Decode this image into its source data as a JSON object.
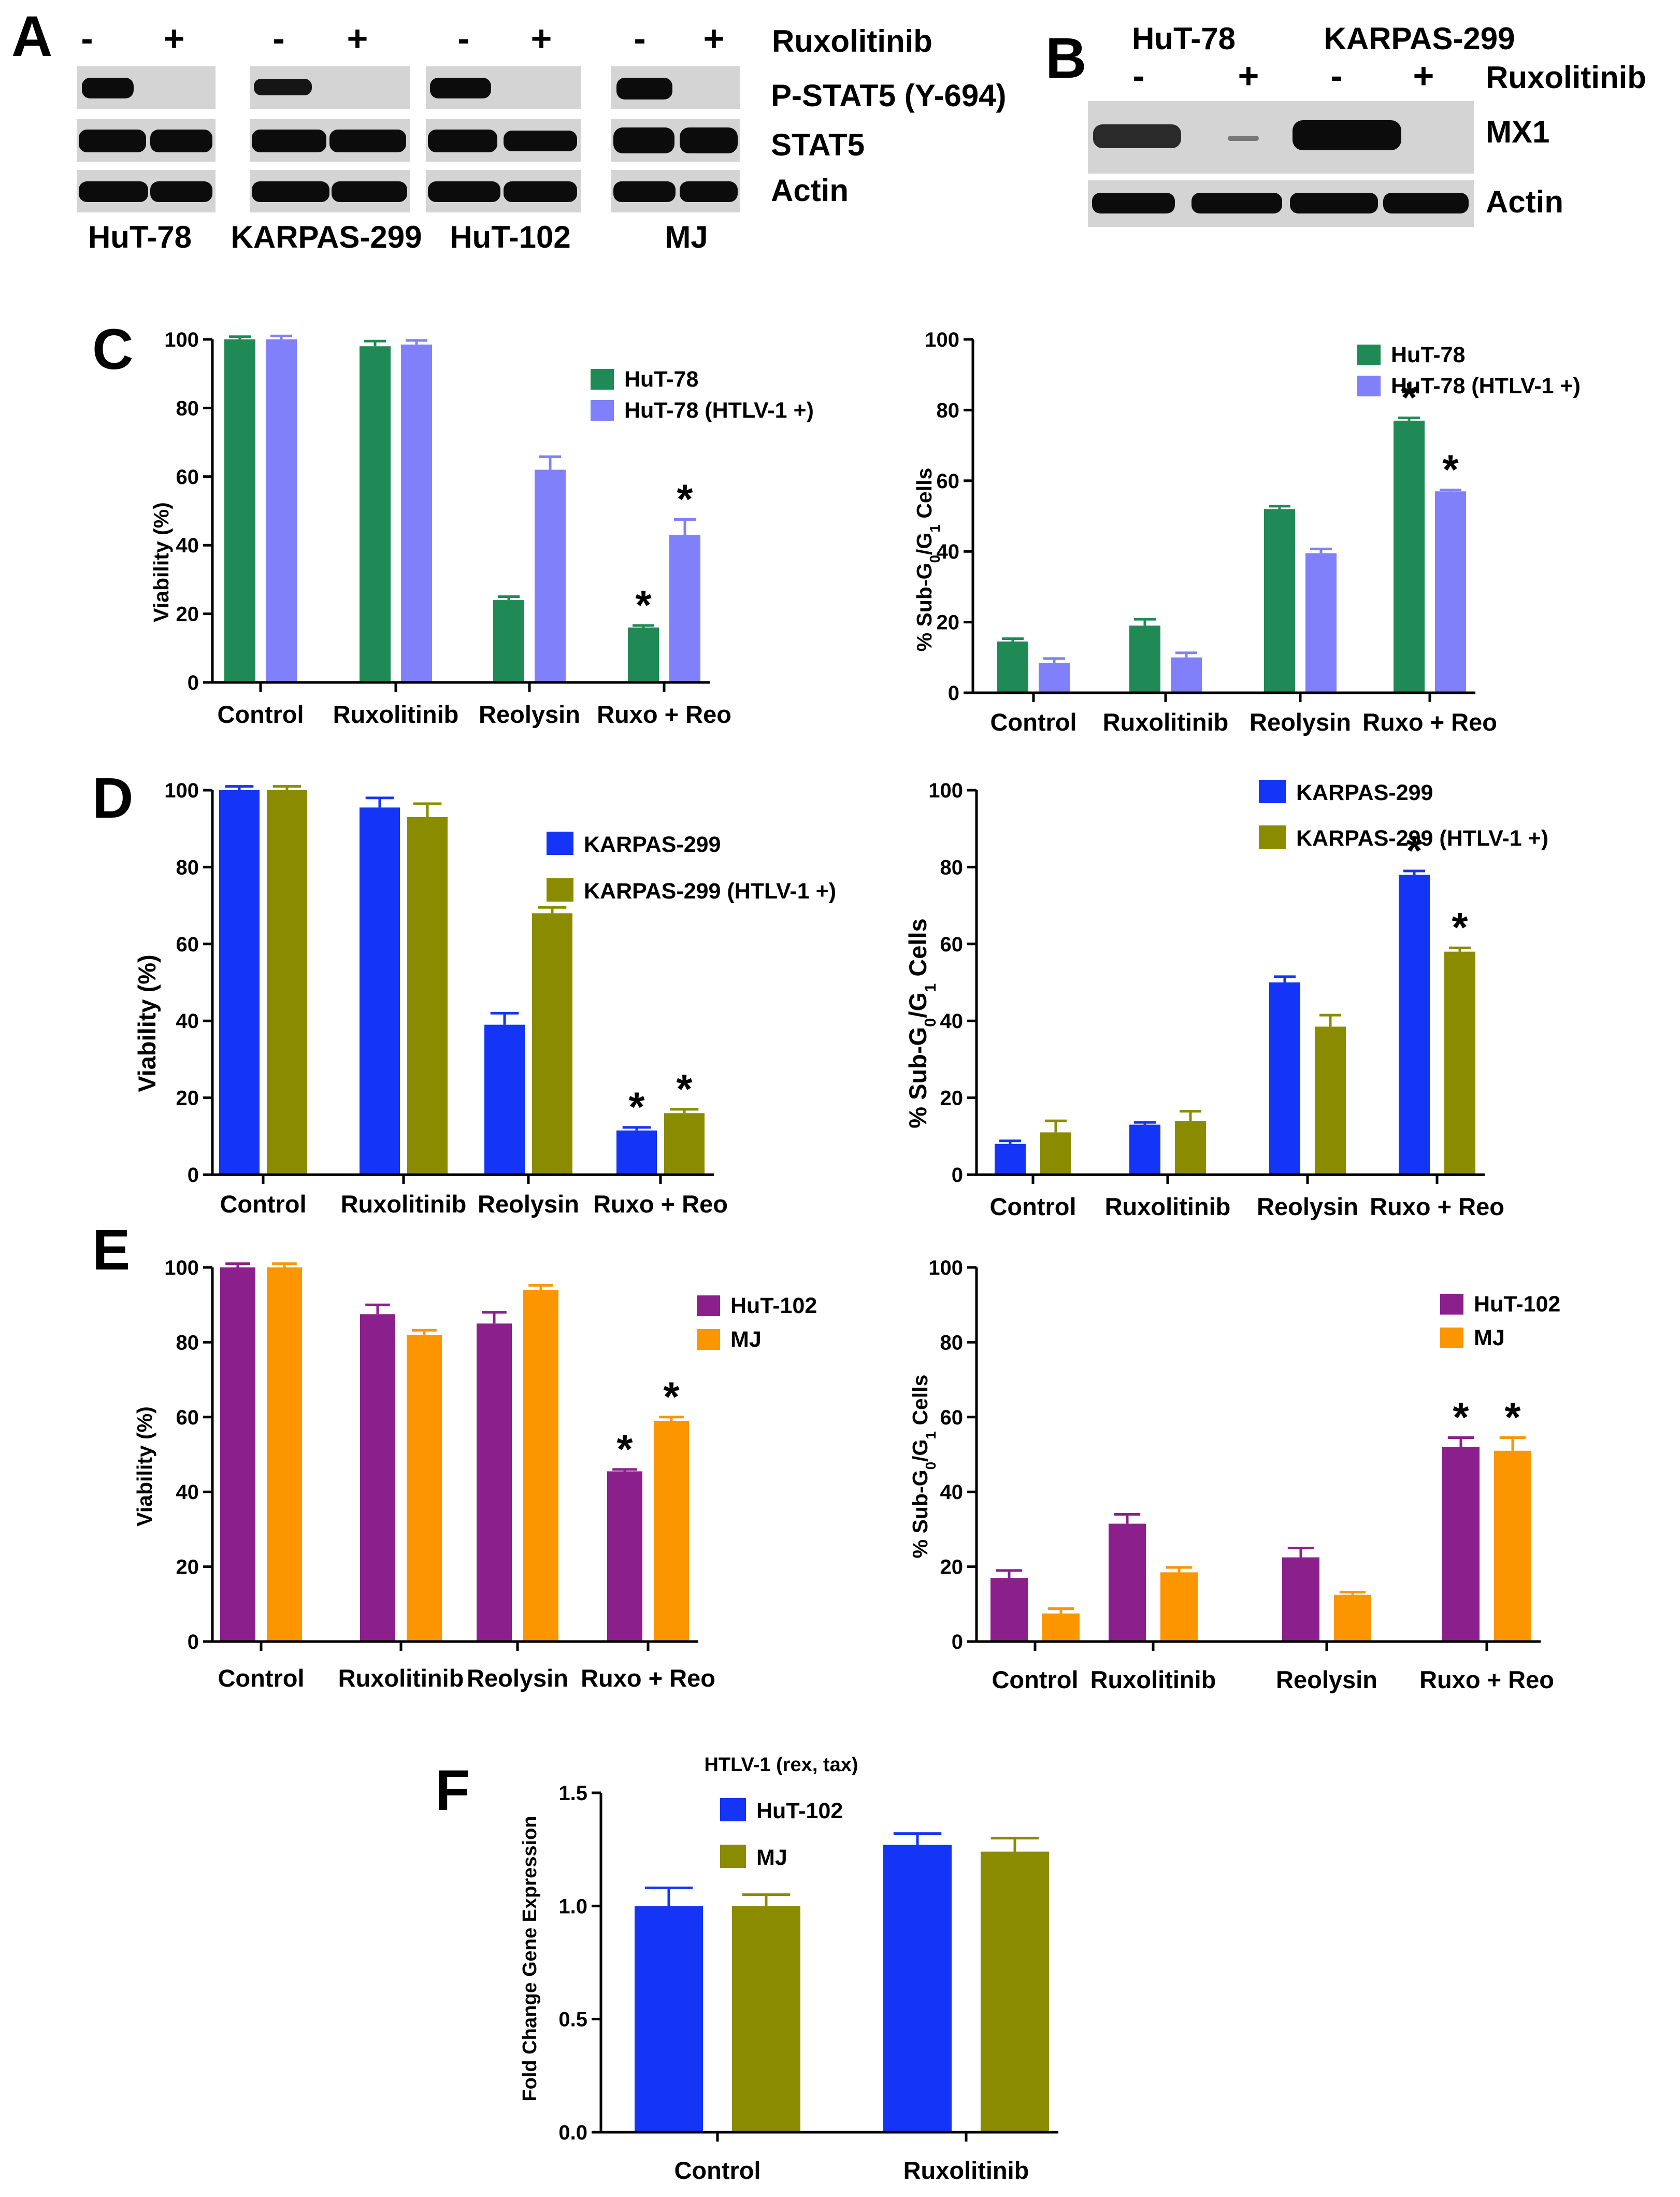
{
  "colors": {
    "green": "#1f8a56",
    "periwinkle": "#8080fb",
    "blue": "#1435f5",
    "olive": "#8b8b00",
    "purple": "#8b208c",
    "orange": "#fb9600",
    "blot_bg": "#d4d4d4",
    "band": "#0c0c0c"
  },
  "panel_a": {
    "label": "A",
    "signs": [
      "-",
      "+",
      "-",
      "+",
      "-",
      "+",
      "-",
      "+"
    ],
    "treatment": "Ruxolitinib",
    "rows": [
      "P-STAT5 (Y-694)",
      "STAT5",
      "Actin"
    ],
    "cell_lines": [
      "HuT-78",
      "KARPAS-299",
      "HuT-102",
      "MJ"
    ]
  },
  "panel_b": {
    "label": "B",
    "cell_lines": [
      "HuT-78",
      "KARPAS-299"
    ],
    "signs": [
      "-",
      "+",
      "-",
      "+"
    ],
    "treatment": "Ruxolitinib",
    "rows": [
      "MX1",
      "Actin"
    ]
  },
  "chart_data": [
    {
      "panel": "C",
      "type": "bar",
      "title": "",
      "categories": [
        "Control",
        "Ruxolitinib",
        "Reolysin",
        "Ruxo + Reo"
      ],
      "ylabel": "Viability (%)",
      "ylim": [
        0,
        100
      ],
      "yticks": [
        0,
        20,
        40,
        60,
        80,
        100
      ],
      "legend_position": "top-right",
      "series": [
        {
          "name": "HuT-78",
          "color": "#1f8a56",
          "values": [
            100,
            98,
            24,
            16
          ],
          "errors": [
            0.8,
            1.5,
            1,
            0.6
          ],
          "stars": [
            false,
            false,
            false,
            true
          ]
        },
        {
          "name": "HuT-78 (HTLV-1 +)",
          "color": "#8080fb",
          "values": [
            100,
            98.5,
            62,
            43
          ],
          "errors": [
            1,
            1.2,
            3.8,
            4.5
          ],
          "stars": [
            false,
            false,
            false,
            true
          ]
        }
      ]
    },
    {
      "panel": "C",
      "type": "bar",
      "title": "",
      "categories": [
        "Control",
        "Ruxolitinib",
        "Reolysin",
        "Ruxo + Reo"
      ],
      "ylabel": "% Sub-G0/G1 Cells",
      "ylim": [
        0,
        100
      ],
      "yticks": [
        0,
        20,
        40,
        60,
        80,
        100
      ],
      "legend_position": "top-right",
      "series": [
        {
          "name": "HuT-78",
          "color": "#1f8a56",
          "values": [
            14.5,
            19,
            52,
            77
          ],
          "errors": [
            0.8,
            1.8,
            0.8,
            0.8
          ],
          "stars": [
            false,
            false,
            false,
            true
          ]
        },
        {
          "name": "HuT-78 (HTLV-1 +)",
          "color": "#8080fb",
          "values": [
            8.5,
            10,
            39.5,
            57
          ],
          "errors": [
            1.2,
            1.3,
            1.2,
            0.4
          ],
          "stars": [
            false,
            false,
            false,
            true
          ]
        }
      ]
    },
    {
      "panel": "D",
      "type": "bar",
      "title": "",
      "categories": [
        "Control",
        "Ruxolitinib",
        "Reolysin",
        "Ruxo + Reo"
      ],
      "ylabel": "Viability (%)",
      "ylim": [
        0,
        100
      ],
      "yticks": [
        0,
        20,
        40,
        60,
        80,
        100
      ],
      "legend_position": "top-right",
      "series": [
        {
          "name": "KARPAS-299",
          "color": "#1435f5",
          "values": [
            100,
            95.5,
            39,
            11.5
          ],
          "errors": [
            1,
            2.5,
            3,
            0.8
          ],
          "stars": [
            false,
            false,
            false,
            true
          ]
        },
        {
          "name": "KARPAS-299 (HTLV-1 +)",
          "color": "#8b8b00",
          "values": [
            100,
            93,
            68,
            16
          ],
          "errors": [
            1,
            3.5,
            1.5,
            1
          ],
          "stars": [
            false,
            false,
            false,
            true
          ]
        }
      ]
    },
    {
      "panel": "D",
      "type": "bar",
      "title": "",
      "categories": [
        "Control",
        "Ruxolitinib",
        "Reolysin",
        "Ruxo + Reo"
      ],
      "ylabel": "% Sub-G0/G1 Cells",
      "ylim": [
        0,
        100
      ],
      "yticks": [
        0,
        20,
        40,
        60,
        80,
        100
      ],
      "legend_position": "top-right",
      "series": [
        {
          "name": "KARPAS-299",
          "color": "#1435f5",
          "values": [
            8,
            13,
            50,
            78
          ],
          "errors": [
            0.8,
            0.6,
            1.5,
            1
          ],
          "stars": [
            false,
            false,
            false,
            true
          ]
        },
        {
          "name": "KARPAS-299 (HTLV-1 +)",
          "color": "#8b8b00",
          "values": [
            11,
            14,
            38.5,
            58
          ],
          "errors": [
            3,
            2.5,
            3,
            1
          ],
          "stars": [
            false,
            false,
            false,
            true
          ]
        }
      ]
    },
    {
      "panel": "E",
      "type": "bar",
      "title": "",
      "categories": [
        "Control",
        "Ruxolitinib",
        "Reolysin",
        "Ruxo + Reo"
      ],
      "ylabel": "Viability (%)",
      "ylim": [
        0,
        100
      ],
      "yticks": [
        0,
        20,
        40,
        60,
        80,
        100
      ],
      "legend_position": "top-right",
      "series": [
        {
          "name": "HuT-102",
          "color": "#8b208c",
          "values": [
            100,
            87.5,
            85,
            45.5
          ],
          "errors": [
            1,
            2.5,
            3,
            0.5
          ],
          "stars": [
            false,
            false,
            false,
            true
          ]
        },
        {
          "name": "MJ",
          "color": "#fb9600",
          "values": [
            100,
            82,
            94,
            59
          ],
          "errors": [
            1,
            1.2,
            1.2,
            1
          ],
          "stars": [
            false,
            false,
            false,
            true
          ]
        }
      ]
    },
    {
      "panel": "E",
      "type": "bar",
      "title": "",
      "categories": [
        "Control",
        "Ruxolitinib",
        "Reolysin",
        "Ruxo + Reo"
      ],
      "ylabel": "% Sub-G0/G1 Cells",
      "ylim": [
        0,
        100
      ],
      "yticks": [
        0,
        20,
        40,
        60,
        80,
        100
      ],
      "legend_position": "top-right",
      "series": [
        {
          "name": "HuT-102",
          "color": "#8b208c",
          "values": [
            17,
            31.5,
            22.5,
            52
          ],
          "errors": [
            2,
            2.5,
            2.5,
            2.5
          ],
          "stars": [
            false,
            false,
            false,
            true
          ]
        },
        {
          "name": "MJ",
          "color": "#fb9600",
          "values": [
            7.5,
            18.5,
            12.5,
            51
          ],
          "errors": [
            1.3,
            1.3,
            0.7,
            3.5
          ],
          "stars": [
            false,
            false,
            false,
            true
          ]
        }
      ]
    },
    {
      "panel": "F",
      "type": "bar",
      "title": "HTLV-1 (rex, tax)",
      "categories": [
        "Control",
        "Ruxolitinib"
      ],
      "ylabel": "Fold Change Gene Expression",
      "ylim": [
        0,
        1.5
      ],
      "yticks": [
        0.0,
        0.5,
        1.0,
        1.5
      ],
      "legend_position": "top-left",
      "series": [
        {
          "name": "HuT-102",
          "color": "#1435f5",
          "values": [
            1.0,
            1.27
          ],
          "errors": [
            0.08,
            0.05
          ],
          "stars": [
            false,
            false
          ]
        },
        {
          "name": "MJ",
          "color": "#8b8b00",
          "values": [
            1.0,
            1.24
          ],
          "errors": [
            0.05,
            0.06
          ],
          "stars": [
            false,
            false
          ]
        }
      ]
    }
  ],
  "chart_text": {
    "c_label": "C",
    "d_label": "D",
    "e_label": "E",
    "f_label": "F",
    "subg_prefix": "% Sub-G",
    "subg_sub0": "0",
    "subg_slash": "/G",
    "subg_sub1": "1",
    "subg_suffix": " Cells",
    "star": "*"
  }
}
